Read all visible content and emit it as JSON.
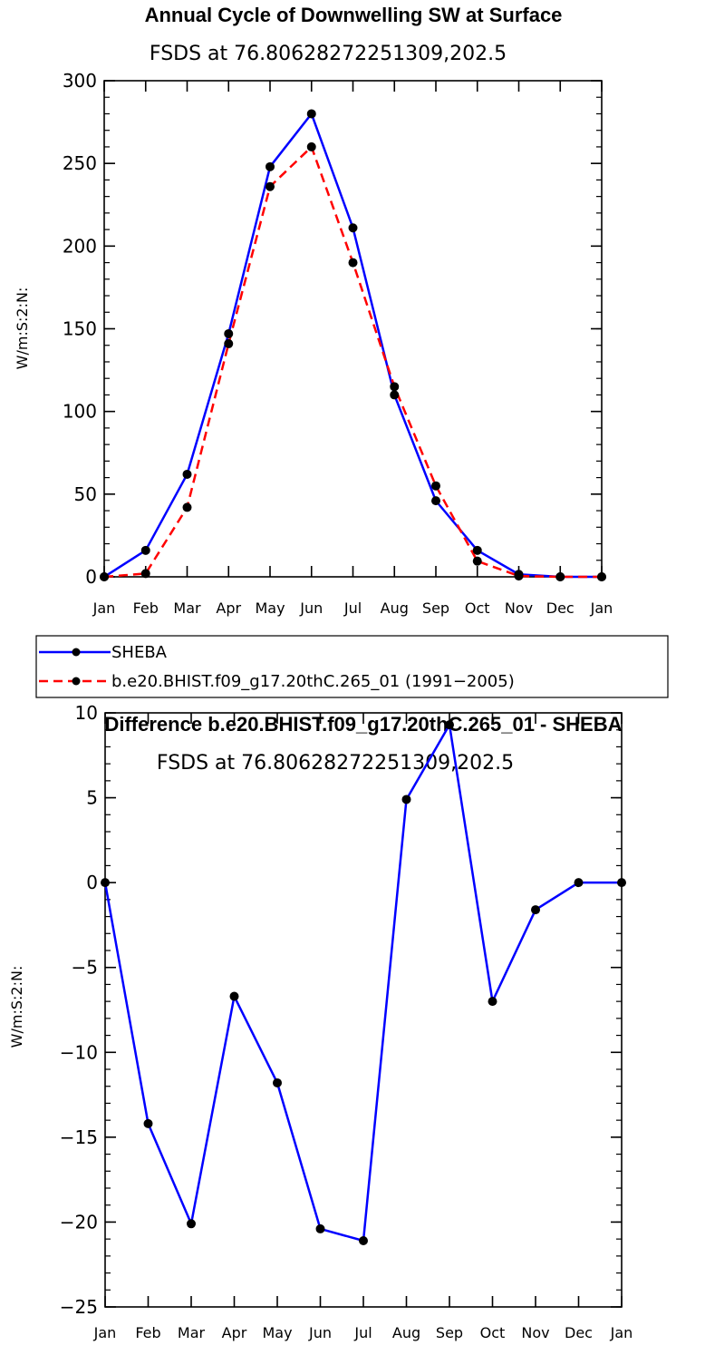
{
  "chart_data": [
    {
      "type": "line",
      "title": "Annual Cycle of Downwelling SW at Surface",
      "subtitle": "FSDS at 76.80628272251309,202.5",
      "ylabel": "W/m:S:2:N:",
      "xlabel": "",
      "categories": [
        "Jan",
        "Feb",
        "Mar",
        "Apr",
        "May",
        "Jun",
        "Jul",
        "Aug",
        "Sep",
        "Oct",
        "Nov",
        "Dec",
        "Jan"
      ],
      "ylim": [
        0,
        300
      ],
      "yticks": [
        "0",
        "50",
        "100",
        "150",
        "200",
        "250",
        "300"
      ],
      "series": [
        {
          "name": "SHEBA",
          "color": "#0000ff",
          "dash": "solid",
          "values": [
            0,
            16,
            62,
            147,
            248,
            280,
            211,
            110,
            46,
            16,
            1.5,
            0,
            0
          ]
        },
        {
          "name": "b.e20.BHIST.f09_g17.20thC.265_01 (1991−2005)",
          "color": "#ff0000",
          "dash": "dashed",
          "values": [
            0,
            2,
            42,
            141,
            236,
            260,
            190,
            115,
            55,
            9.5,
            0.5,
            0,
            0
          ]
        }
      ]
    },
    {
      "type": "line",
      "title": "Difference b.e20.BHIST.f09_g17.20thC.265_01 - SHEBA",
      "subtitle": "FSDS at 76.80628272251309,202.5",
      "ylabel": "W/m:S:2:N:",
      "xlabel": "",
      "categories": [
        "Jan",
        "Feb",
        "Mar",
        "Apr",
        "May",
        "Jun",
        "Jul",
        "Aug",
        "Sep",
        "Oct",
        "Nov",
        "Dec",
        "Jan"
      ],
      "ylim": [
        -25,
        10
      ],
      "yticks": [
        "10",
        "5",
        "0",
        "−5",
        "−10",
        "−15",
        "−20",
        "−25"
      ],
      "ytick_values": [
        10,
        5,
        0,
        -5,
        -10,
        -15,
        -20,
        -25
      ],
      "series": [
        {
          "name": "Difference",
          "color": "#0000ff",
          "dash": "solid",
          "values": [
            0,
            -14.2,
            -20.1,
            -6.7,
            -11.8,
            -20.4,
            -21.1,
            4.9,
            9.3,
            -7.0,
            -1.6,
            0,
            0
          ]
        }
      ]
    }
  ]
}
